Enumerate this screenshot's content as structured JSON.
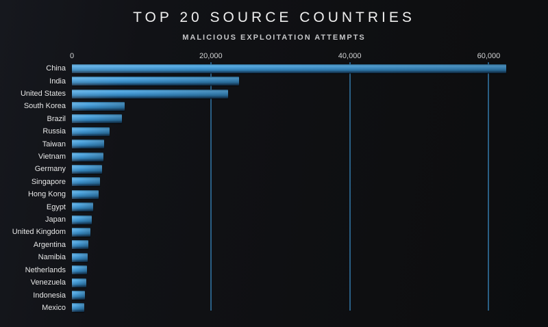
{
  "header": {
    "title": "TOP 20 SOURCE COUNTRIES",
    "subtitle": "MALICIOUS EXPLOITATION ATTEMPTS"
  },
  "colors": {
    "background": "#101114",
    "bar_highlight": "#5cafe5",
    "bar_mid": "#3f94cf",
    "bar_shadow": "#1a4264",
    "gridline": "#2a5f85",
    "title_text": "#efefef",
    "subtitle_text": "#c6c7c9",
    "tick_text": "#d4d5d6",
    "label_text": "#e7e7e7"
  },
  "chart_data": {
    "type": "bar",
    "orientation": "horizontal",
    "title": "TOP 20 SOURCE COUNTRIES",
    "subtitle": "MALICIOUS EXPLOITATION ATTEMPTS",
    "categories": [
      "China",
      "India",
      "United States",
      "South Korea",
      "Brazil",
      "Russia",
      "Taiwan",
      "Vietnam",
      "Germany",
      "Singapore",
      "Hong Kong",
      "Egypt",
      "Japan",
      "United Kingdom",
      "Argentina",
      "Namibia",
      "Netherlands",
      "Venezuela",
      "Indonesia",
      "Mexico"
    ],
    "values": [
      62500,
      24100,
      22500,
      7600,
      7200,
      5400,
      4650,
      4500,
      4350,
      4050,
      3850,
      3050,
      2850,
      2650,
      2400,
      2250,
      2150,
      2050,
      1900,
      1800
    ],
    "xlabel": "",
    "ylabel": "",
    "xlim": [
      0,
      64000
    ],
    "x_ticks": [
      {
        "label": "0",
        "value": 0
      },
      {
        "label": "20,000",
        "value": 20000
      },
      {
        "label": "40,000",
        "value": 40000
      },
      {
        "label": "60,000",
        "value": 60000
      }
    ],
    "grid": "vertical-at-ticks",
    "legend": "none"
  }
}
